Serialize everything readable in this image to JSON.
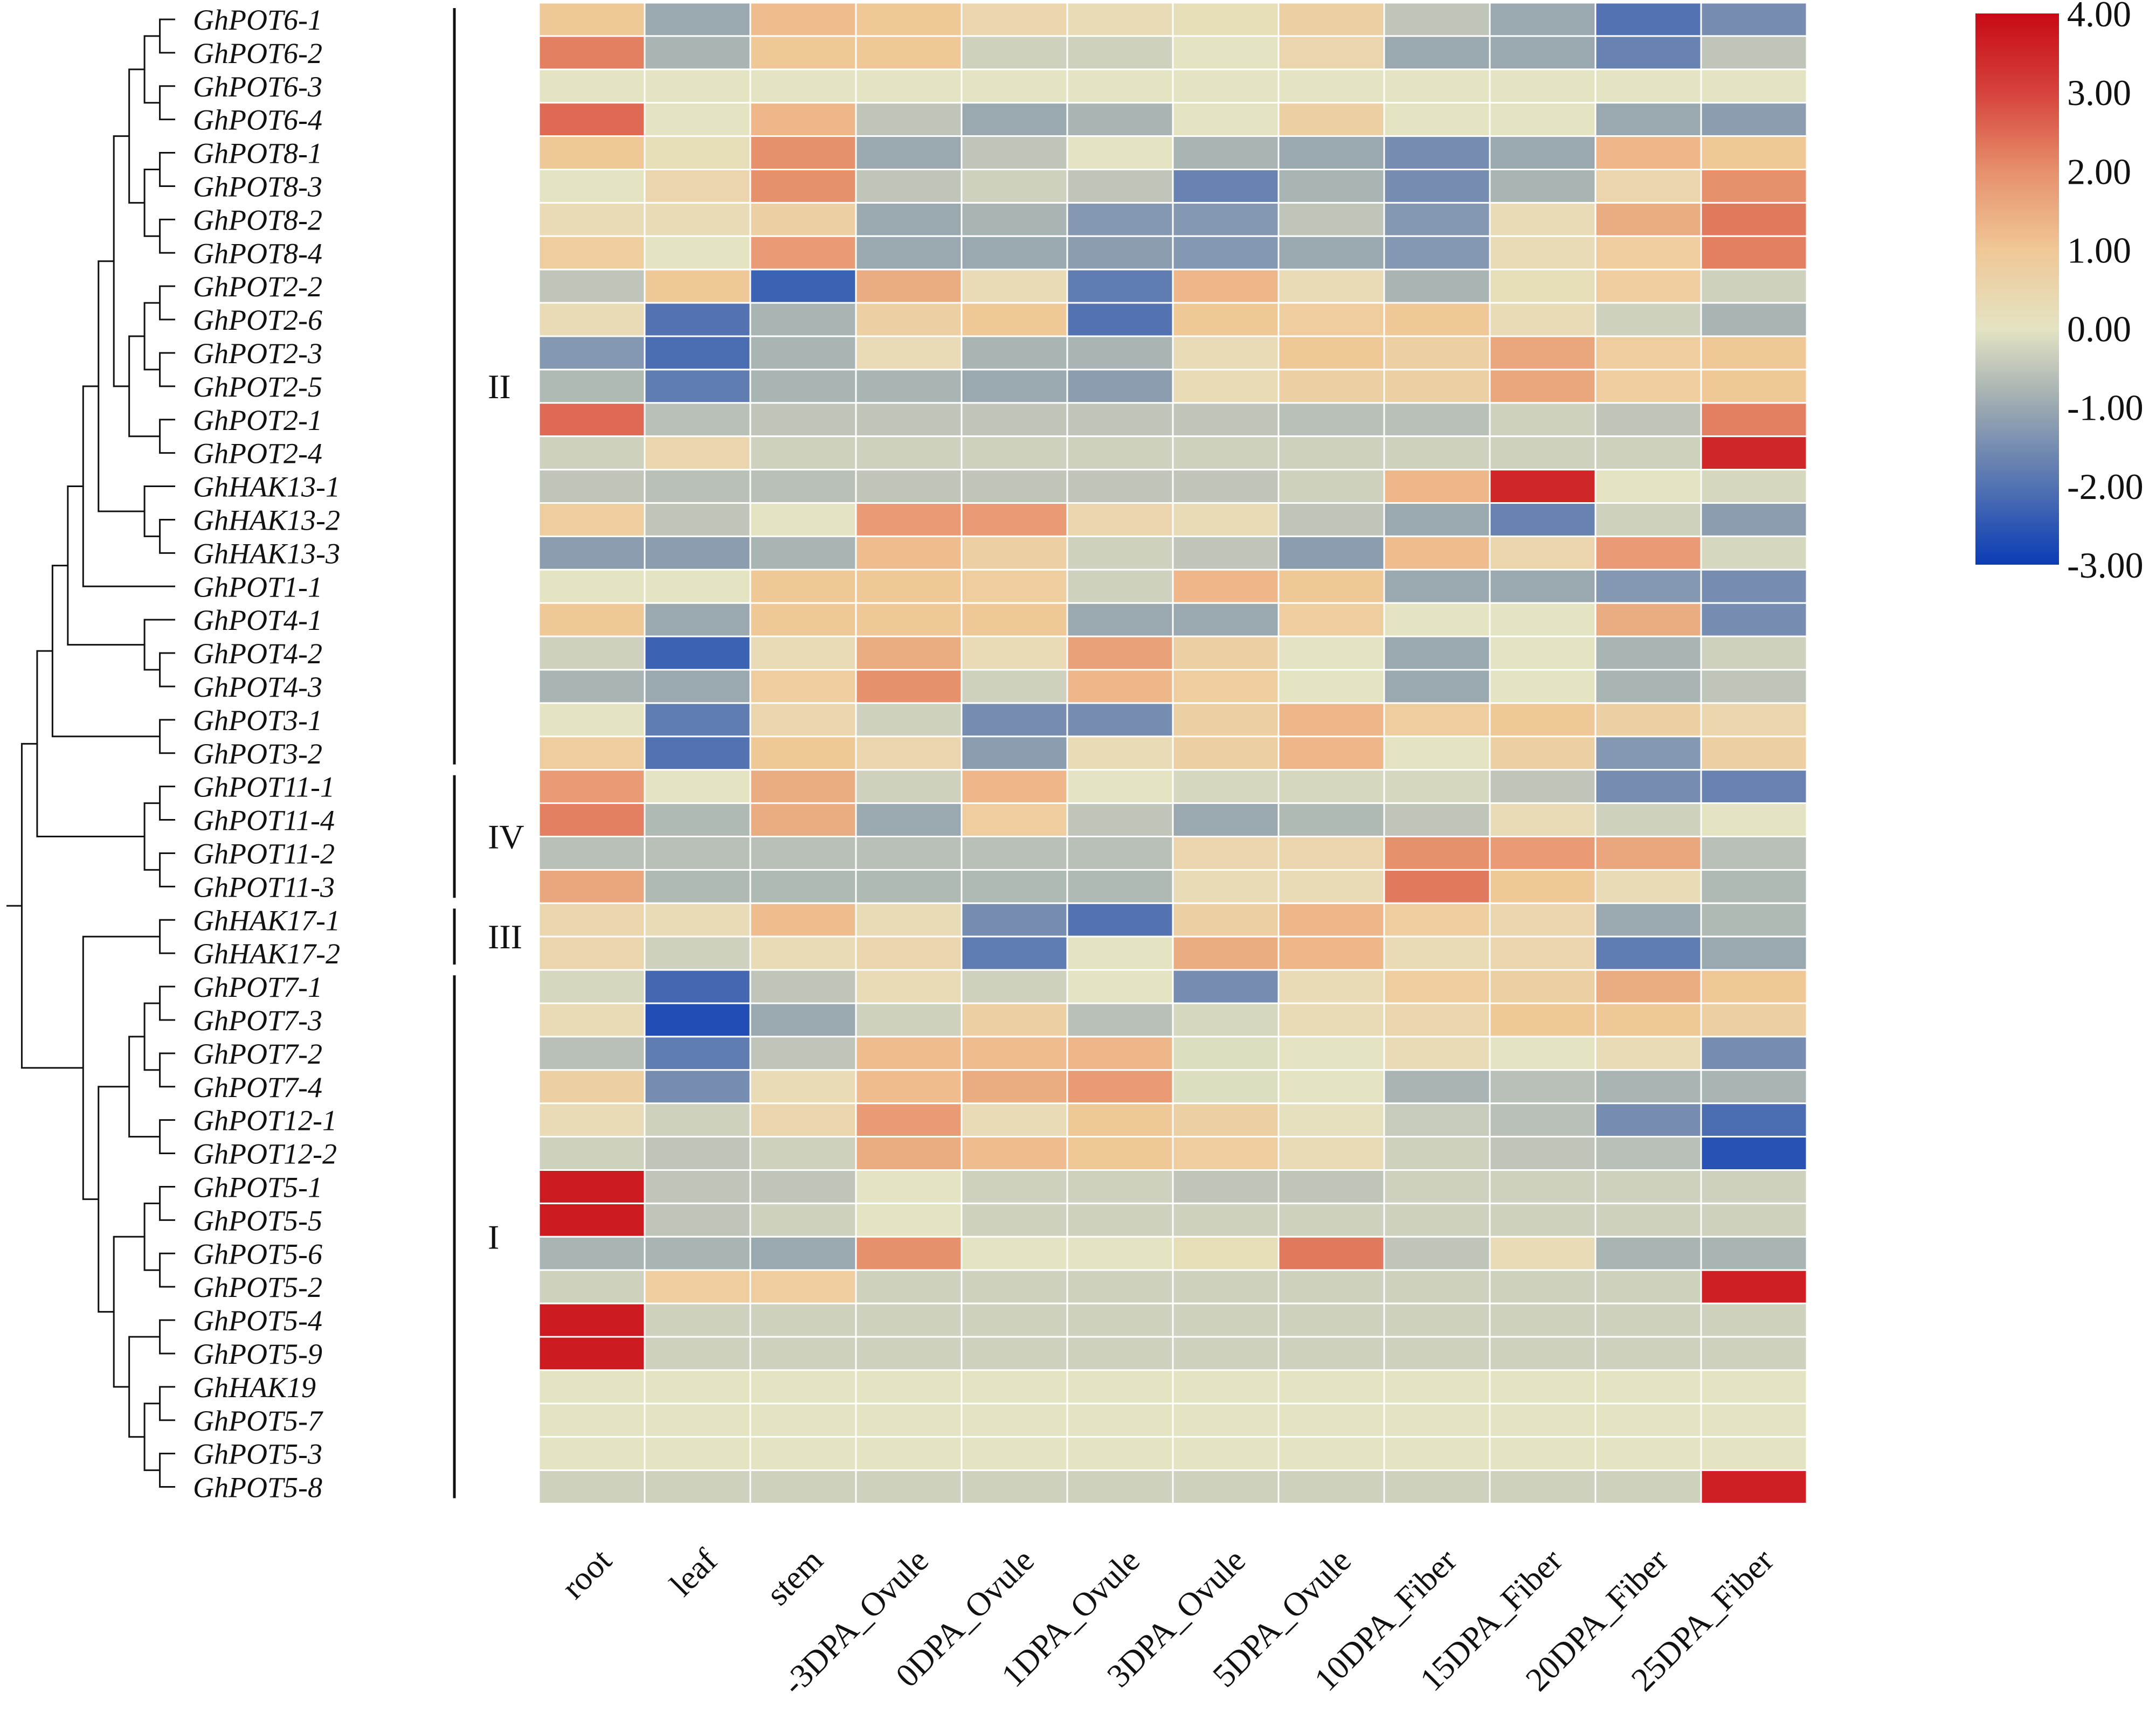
{
  "chart_data": {
    "type": "heatmap",
    "title": "",
    "columns": [
      "root",
      "leaf",
      "stem",
      "-3DPA_Ovule",
      "0DPA_Ovule",
      "1DPA_Ovule",
      "3DPA_Ovule",
      "5DPA_Ovule",
      "10DPA_Fiber",
      "15DPA_Fiber",
      "20DPA_Fiber",
      "25DPA_Fiber"
    ],
    "rows": [
      "GhPOT6-1",
      "GhPOT6-2",
      "GhPOT6-3",
      "GhPOT6-4",
      "GhPOT8-1",
      "GhPOT8-3",
      "GhPOT8-2",
      "GhPOT8-4",
      "GhPOT2-2",
      "GhPOT2-6",
      "GhPOT2-3",
      "GhPOT2-5",
      "GhPOT2-1",
      "GhPOT2-4",
      "GhHAK13-1",
      "GhHAK13-2",
      "GhHAK13-3",
      "GhPOT1-1",
      "GhPOT4-1",
      "GhPOT4-2",
      "GhPOT4-3",
      "GhPOT3-1",
      "GhPOT3-2",
      "GhPOT11-1",
      "GhPOT11-4",
      "GhPOT11-2",
      "GhPOT11-3",
      "GhHAK17-1",
      "GhHAK17-2",
      "GhPOT7-1",
      "GhPOT7-3",
      "GhPOT7-2",
      "GhPOT7-4",
      "GhPOT12-1",
      "GhPOT12-2",
      "GhPOT5-1",
      "GhPOT5-5",
      "GhPOT5-6",
      "GhPOT5-2",
      "GhPOT5-4",
      "GhPOT5-9",
      "GhHAK19",
      "GhPOT5-7",
      "GhPOT5-3",
      "GhPOT5-8"
    ],
    "values": [
      [
        1.0,
        -1.0,
        1.2,
        1.0,
        0.5,
        0.3,
        0.2,
        0.7,
        -0.5,
        -1.0,
        -2.0,
        -1.5
      ],
      [
        2.2,
        -0.8,
        1.0,
        1.0,
        -0.3,
        -0.3,
        0.0,
        0.5,
        -1.0,
        -1.0,
        -1.7,
        -0.5
      ],
      [
        0.0,
        0.0,
        0.0,
        0.0,
        0.0,
        0.0,
        0.0,
        0.0,
        0.0,
        0.0,
        0.0,
        0.0
      ],
      [
        2.5,
        0.0,
        1.3,
        -0.5,
        -1.0,
        -0.8,
        0.0,
        0.7,
        0.0,
        0.0,
        -1.0,
        -1.2
      ],
      [
        1.0,
        0.2,
        2.0,
        -1.0,
        -0.5,
        0.0,
        -0.8,
        -1.0,
        -1.5,
        -1.0,
        1.3,
        1.0
      ],
      [
        0.0,
        0.5,
        2.0,
        -0.5,
        -0.3,
        -0.5,
        -1.7,
        -0.8,
        -1.5,
        -0.8,
        0.5,
        2.0
      ],
      [
        0.3,
        0.3,
        0.7,
        -1.0,
        -0.8,
        -1.3,
        -1.3,
        -0.5,
        -1.3,
        0.3,
        1.5,
        2.3
      ],
      [
        0.8,
        0.0,
        1.8,
        -1.0,
        -1.0,
        -1.2,
        -1.3,
        -1.0,
        -1.3,
        0.3,
        0.8,
        2.2
      ],
      [
        -0.5,
        1.0,
        -2.3,
        1.5,
        0.3,
        -1.8,
        1.3,
        0.3,
        -0.8,
        0.2,
        0.8,
        -0.3
      ],
      [
        0.3,
        -2.0,
        -0.8,
        0.7,
        1.0,
        -2.0,
        1.0,
        0.8,
        1.0,
        0.3,
        -0.3,
        -0.8
      ],
      [
        -1.3,
        -2.1,
        -0.8,
        0.3,
        -0.8,
        -0.8,
        0.3,
        1.0,
        0.7,
        1.6,
        0.8,
        1.0
      ],
      [
        -0.7,
        -1.8,
        -0.8,
        -0.8,
        -1.0,
        -1.2,
        0.3,
        0.7,
        0.7,
        1.6,
        0.8,
        1.0
      ],
      [
        2.5,
        -0.6,
        -0.5,
        -0.5,
        -0.5,
        -0.5,
        -0.5,
        -0.6,
        -0.6,
        -0.3,
        -0.5,
        2.2
      ],
      [
        -0.3,
        0.5,
        -0.3,
        -0.3,
        -0.3,
        -0.3,
        -0.3,
        -0.3,
        -0.3,
        -0.3,
        -0.3,
        3.5
      ],
      [
        -0.5,
        -0.6,
        -0.6,
        -0.5,
        -0.5,
        -0.5,
        -0.5,
        -0.3,
        1.3,
        3.5,
        0.0,
        -0.2
      ],
      [
        0.8,
        -0.5,
        0.0,
        1.8,
        1.8,
        0.5,
        0.3,
        -0.5,
        -1.0,
        -1.7,
        -0.3,
        -1.2
      ],
      [
        -1.2,
        -1.2,
        -0.8,
        1.2,
        0.7,
        -0.3,
        -0.5,
        -1.2,
        1.2,
        0.5,
        1.8,
        -0.2
      ],
      [
        0.0,
        0.0,
        1.0,
        1.0,
        0.8,
        -0.3,
        1.3,
        1.0,
        -1.0,
        -1.0,
        -1.3,
        -1.5
      ],
      [
        1.0,
        -1.0,
        1.0,
        1.0,
        1.0,
        -1.0,
        -1.0,
        0.8,
        0.0,
        0.0,
        1.5,
        -1.5
      ],
      [
        -0.3,
        -2.3,
        0.3,
        1.5,
        0.3,
        1.7,
        0.7,
        0.0,
        -1.0,
        0.0,
        -0.8,
        -0.3
      ],
      [
        -0.8,
        -1.0,
        0.8,
        2.0,
        -0.3,
        1.3,
        0.8,
        0.0,
        -1.0,
        0.0,
        -0.8,
        -0.5
      ],
      [
        0.0,
        -1.8,
        0.5,
        -0.3,
        -1.5,
        -1.5,
        0.7,
        1.3,
        0.8,
        1.0,
        0.7,
        0.5
      ],
      [
        0.8,
        -2.0,
        1.0,
        0.5,
        -1.2,
        0.3,
        0.7,
        1.3,
        0.0,
        0.7,
        -1.3,
        0.7
      ],
      [
        1.8,
        0.0,
        1.5,
        -0.3,
        1.3,
        0.0,
        -0.2,
        -0.2,
        -0.2,
        -0.5,
        -1.5,
        -1.7
      ],
      [
        2.2,
        -0.7,
        1.5,
        -1.0,
        0.8,
        -0.5,
        -1.0,
        -0.7,
        -0.5,
        0.3,
        -0.3,
        0.0
      ],
      [
        -0.6,
        -0.6,
        -0.6,
        -0.6,
        -0.6,
        -0.6,
        0.5,
        0.5,
        2.0,
        1.8,
        1.6,
        -0.6
      ],
      [
        1.6,
        -0.7,
        -0.7,
        -0.7,
        -0.7,
        -0.7,
        0.3,
        0.3,
        2.3,
        1.0,
        0.3,
        -0.7
      ],
      [
        0.5,
        0.3,
        1.2,
        0.3,
        -1.5,
        -2.0,
        0.7,
        1.3,
        0.8,
        0.5,
        -1.0,
        -0.7
      ],
      [
        0.5,
        -0.3,
        0.3,
        0.5,
        -1.8,
        0.0,
        1.5,
        1.3,
        0.3,
        0.5,
        -1.8,
        -1.0
      ],
      [
        -0.2,
        -2.2,
        -0.5,
        0.3,
        -0.3,
        0.0,
        -1.5,
        0.3,
        0.8,
        0.7,
        1.5,
        1.0
      ],
      [
        0.3,
        -2.7,
        -1.0,
        -0.3,
        0.7,
        -0.6,
        -0.2,
        0.3,
        0.5,
        1.0,
        1.0,
        0.7
      ],
      [
        -0.6,
        -1.8,
        -0.5,
        1.2,
        1.2,
        1.3,
        -0.1,
        0.0,
        0.3,
        0.0,
        0.3,
        -1.5
      ],
      [
        0.7,
        -1.5,
        0.3,
        1.2,
        1.5,
        1.8,
        -0.1,
        0.0,
        -0.8,
        -0.6,
        -0.8,
        -0.8
      ],
      [
        0.3,
        -0.3,
        0.5,
        1.8,
        0.3,
        1.0,
        0.7,
        0.1,
        -0.4,
        -0.6,
        -1.5,
        -2.1
      ],
      [
        -0.3,
        -0.5,
        -0.3,
        1.5,
        1.2,
        1.0,
        0.8,
        0.3,
        -0.3,
        -0.5,
        -0.6,
        -2.6
      ],
      [
        3.7,
        -0.5,
        -0.5,
        0.0,
        -0.3,
        -0.3,
        -0.5,
        -0.5,
        -0.3,
        -0.3,
        -0.3,
        -0.3
      ],
      [
        3.7,
        -0.5,
        -0.3,
        0.0,
        -0.3,
        -0.3,
        -0.3,
        -0.3,
        -0.3,
        -0.3,
        -0.3,
        -0.3
      ],
      [
        -0.8,
        -0.8,
        -1.0,
        2.0,
        0.0,
        0.0,
        0.2,
        2.3,
        -0.5,
        0.3,
        -0.8,
        -0.8
      ],
      [
        -0.3,
        0.8,
        0.8,
        -0.3,
        -0.3,
        -0.3,
        -0.3,
        -0.3,
        -0.3,
        -0.3,
        -0.3,
        3.6
      ],
      [
        3.7,
        -0.3,
        -0.3,
        -0.3,
        -0.3,
        -0.3,
        -0.3,
        -0.3,
        -0.3,
        -0.3,
        -0.3,
        -0.3
      ],
      [
        3.7,
        -0.3,
        -0.3,
        -0.3,
        -0.3,
        -0.3,
        -0.3,
        -0.3,
        -0.3,
        -0.3,
        -0.3,
        -0.3
      ],
      [
        0.0,
        0.0,
        0.0,
        0.0,
        0.0,
        0.0,
        0.0,
        0.0,
        0.0,
        0.0,
        0.0,
        0.0
      ],
      [
        0.0,
        0.0,
        0.0,
        0.0,
        0.0,
        0.0,
        0.0,
        0.0,
        0.0,
        0.0,
        0.0,
        0.0
      ],
      [
        0.0,
        0.0,
        0.0,
        0.0,
        0.0,
        0.0,
        0.0,
        0.0,
        0.0,
        0.0,
        0.0,
        0.0
      ],
      [
        -0.3,
        -0.3,
        -0.3,
        -0.3,
        -0.3,
        -0.3,
        -0.3,
        -0.3,
        -0.3,
        -0.3,
        -0.3,
        3.6
      ]
    ],
    "groups": [
      {
        "label": "II",
        "first_row": 0,
        "last_row": 22
      },
      {
        "label": "IV",
        "first_row": 23,
        "last_row": 26
      },
      {
        "label": "III",
        "first_row": 27,
        "last_row": 28
      },
      {
        "label": "I",
        "first_row": 29,
        "last_row": 44
      }
    ],
    "color_scale": {
      "min": -3.0,
      "max": 4.0,
      "stops": [
        {
          "value": -3.0,
          "color": "#0a3cb4"
        },
        {
          "value": -1.0,
          "color": "#9aa8b0"
        },
        {
          "value": 0.0,
          "color": "#e4e3c2"
        },
        {
          "value": 1.0,
          "color": "#f0c796"
        },
        {
          "value": 2.0,
          "color": "#e6906c"
        },
        {
          "value": 3.0,
          "color": "#d6423c"
        },
        {
          "value": 4.0,
          "color": "#c80a14"
        }
      ],
      "tick_labels": [
        "4.00",
        "3.00",
        "2.00",
        "1.00",
        "0.00",
        "-1.00",
        "-2.00",
        "-3.00"
      ]
    },
    "colors": {
      "cell_border": "#ffffff",
      "text": "#111111",
      "tree": "#111111"
    }
  }
}
